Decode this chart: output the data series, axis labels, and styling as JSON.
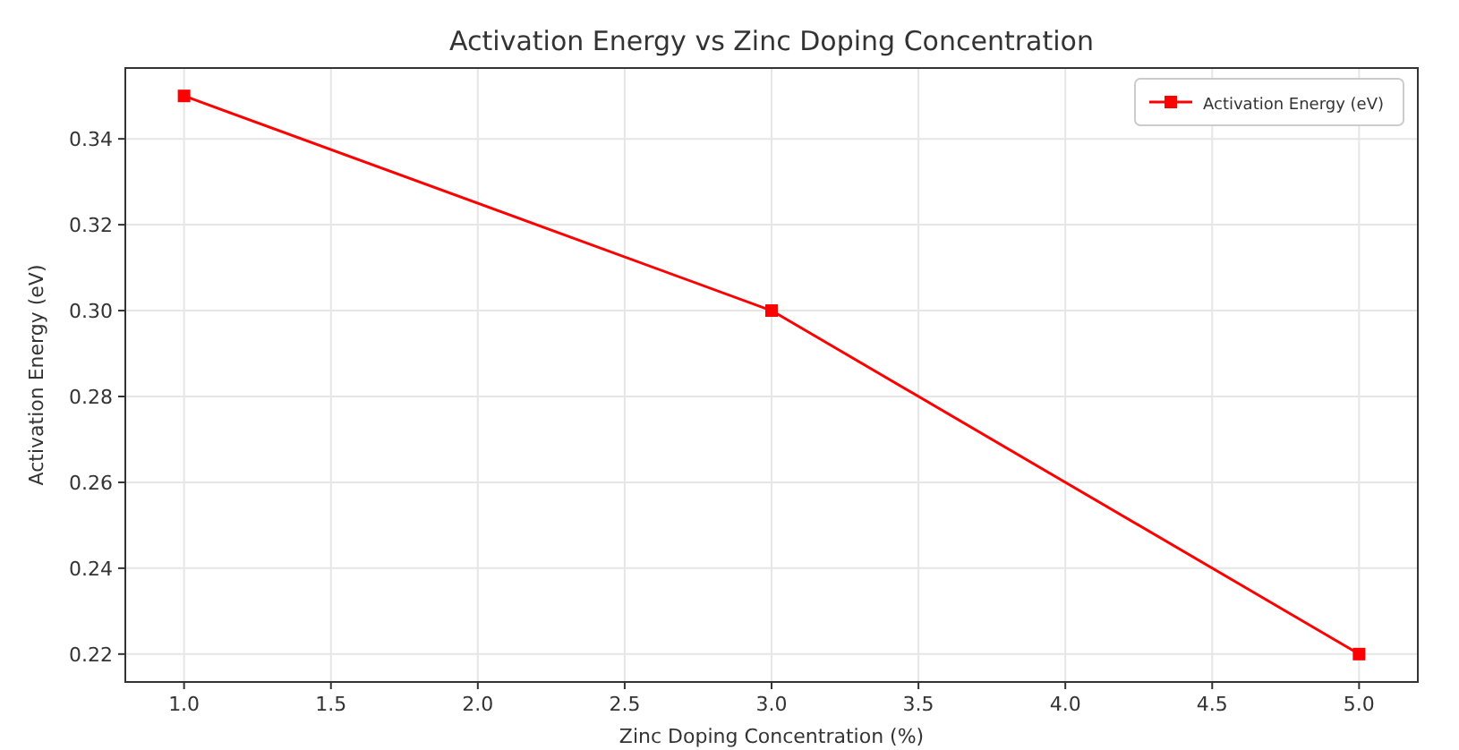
{
  "chart_data": {
    "type": "line",
    "title": "Activation Energy vs Zinc Doping Concentration",
    "xlabel": "Zinc Doping Concentration (%)",
    "ylabel": "Activation Energy (eV)",
    "x": [
      1,
      3,
      5
    ],
    "series": [
      {
        "name": "Activation Energy (eV)",
        "color": "#ff0000",
        "values": [
          0.35,
          0.3,
          0.22
        ]
      }
    ],
    "xlim": [
      0.8,
      5.2
    ],
    "xticks": [
      {
        "value": 1,
        "label": "1.0"
      },
      1.5,
      {
        "value": 2,
        "label": "2.0"
      },
      2.5,
      {
        "value": 3,
        "label": "3.0"
      },
      3.5,
      {
        "value": 4,
        "label": "4.0"
      },
      4.5,
      {
        "value": 5,
        "label": "5.0"
      }
    ],
    "ylim": [
      0.2135,
      0.3565
    ],
    "yticks": [
      0.22,
      0.24,
      0.26,
      0.28,
      {
        "value": 0.3,
        "label": "0.30"
      },
      0.32,
      0.34
    ],
    "grid": true,
    "legend": "top right",
    "marker": "square",
    "line_style": "solid"
  }
}
